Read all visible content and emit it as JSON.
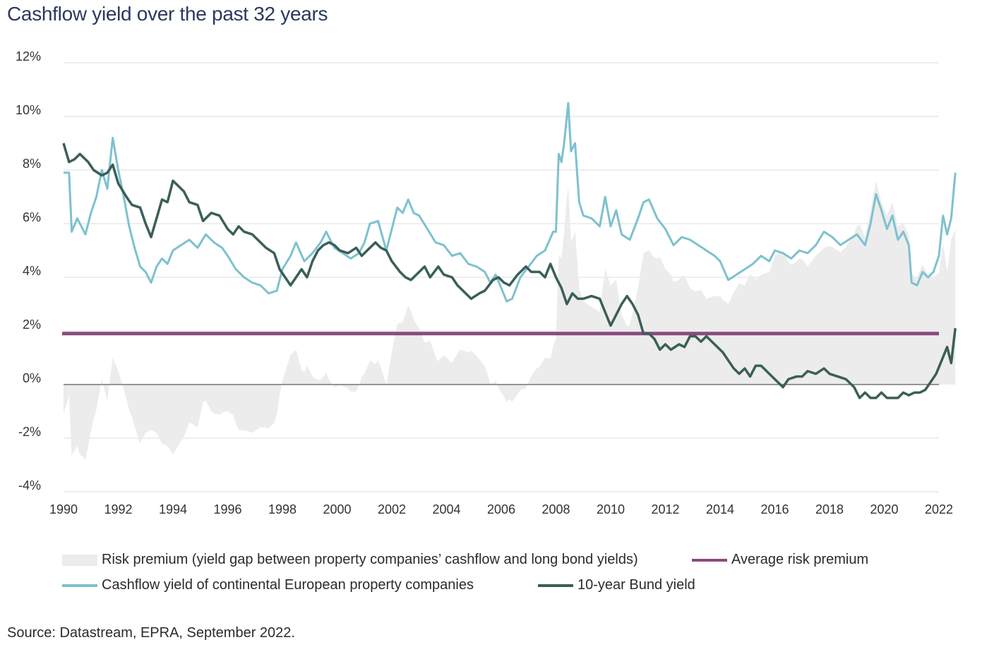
{
  "title": "Cashflow yield over the past 32 years",
  "source": "Source: Datastream, EPRA, September 2022.",
  "colors": {
    "risk_premium": "#ececec",
    "average": "#8a4a7e",
    "cashflow": "#7ec1cf",
    "bund": "#3a5f58",
    "grid": "#dddddd",
    "zero": "#333333"
  },
  "chart_data": {
    "type": "line",
    "xlim": [
      1990,
      2022
    ],
    "ylim": [
      -4,
      12
    ],
    "x_ticks": [
      "1990",
      "1992",
      "1994",
      "1996",
      "1998",
      "2000",
      "2002",
      "2004",
      "2006",
      "2008",
      "2010",
      "2012",
      "2014",
      "2016",
      "2018",
      "2020",
      "2022"
    ],
    "y_ticks": [
      "12%",
      "10%",
      "8%",
      "6%",
      "4%",
      "2%",
      "0%",
      "-2%",
      "-4%"
    ],
    "grid": true,
    "legend": "bottom",
    "average_risk_premium": 1.9,
    "series": [
      {
        "name": "Cashflow yield of continental European property companies",
        "points": [
          [
            1990.0,
            7.9
          ],
          [
            1990.2,
            7.9
          ],
          [
            1990.3,
            5.7
          ],
          [
            1990.5,
            6.2
          ],
          [
            1990.8,
            5.6
          ],
          [
            1991.0,
            6.4
          ],
          [
            1991.2,
            7.0
          ],
          [
            1991.4,
            8.0
          ],
          [
            1991.6,
            7.3
          ],
          [
            1991.8,
            9.2
          ],
          [
            1992.0,
            8.0
          ],
          [
            1992.2,
            7.0
          ],
          [
            1992.4,
            5.9
          ],
          [
            1992.6,
            5.1
          ],
          [
            1992.8,
            4.4
          ],
          [
            1993.0,
            4.2
          ],
          [
            1993.2,
            3.8
          ],
          [
            1993.4,
            4.4
          ],
          [
            1993.6,
            4.7
          ],
          [
            1993.8,
            4.5
          ],
          [
            1994.0,
            5.0
          ],
          [
            1994.3,
            5.2
          ],
          [
            1994.6,
            5.4
          ],
          [
            1994.9,
            5.1
          ],
          [
            1995.2,
            5.6
          ],
          [
            1995.5,
            5.3
          ],
          [
            1995.8,
            5.1
          ],
          [
            1996.0,
            4.8
          ],
          [
            1996.3,
            4.3
          ],
          [
            1996.6,
            4.0
          ],
          [
            1996.9,
            3.8
          ],
          [
            1997.2,
            3.7
          ],
          [
            1997.5,
            3.4
          ],
          [
            1997.8,
            3.5
          ],
          [
            1998.0,
            4.3
          ],
          [
            1998.3,
            4.8
          ],
          [
            1998.5,
            5.3
          ],
          [
            1998.8,
            4.6
          ],
          [
            1999.1,
            4.9
          ],
          [
            1999.4,
            5.3
          ],
          [
            1999.6,
            5.7
          ],
          [
            1999.9,
            5.1
          ],
          [
            2000.2,
            4.9
          ],
          [
            2000.5,
            4.7
          ],
          [
            2000.8,
            4.9
          ],
          [
            2001.0,
            5.3
          ],
          [
            2001.2,
            6.0
          ],
          [
            2001.5,
            6.1
          ],
          [
            2001.8,
            5.0
          ],
          [
            2002.0,
            5.8
          ],
          [
            2002.2,
            6.6
          ],
          [
            2002.4,
            6.4
          ],
          [
            2002.6,
            6.9
          ],
          [
            2002.8,
            6.4
          ],
          [
            2003.0,
            6.3
          ],
          [
            2003.3,
            5.8
          ],
          [
            2003.6,
            5.3
          ],
          [
            2003.9,
            5.2
          ],
          [
            2004.2,
            4.8
          ],
          [
            2004.5,
            4.9
          ],
          [
            2004.8,
            4.5
          ],
          [
            2005.1,
            4.4
          ],
          [
            2005.4,
            4.2
          ],
          [
            2005.6,
            3.8
          ],
          [
            2005.8,
            4.1
          ],
          [
            2006.0,
            3.6
          ],
          [
            2006.2,
            3.1
          ],
          [
            2006.4,
            3.2
          ],
          [
            2006.7,
            4.0
          ],
          [
            2007.0,
            4.4
          ],
          [
            2007.3,
            4.8
          ],
          [
            2007.6,
            5.0
          ],
          [
            2007.9,
            5.7
          ],
          [
            2008.0,
            5.7
          ],
          [
            2008.1,
            8.6
          ],
          [
            2008.2,
            8.3
          ],
          [
            2008.3,
            9.0
          ],
          [
            2008.45,
            10.5
          ],
          [
            2008.55,
            8.7
          ],
          [
            2008.7,
            9.0
          ],
          [
            2008.85,
            6.8
          ],
          [
            2009.0,
            6.3
          ],
          [
            2009.3,
            6.2
          ],
          [
            2009.6,
            5.9
          ],
          [
            2009.8,
            7.0
          ],
          [
            2010.0,
            5.9
          ],
          [
            2010.2,
            6.5
          ],
          [
            2010.4,
            5.6
          ],
          [
            2010.7,
            5.4
          ],
          [
            2011.0,
            6.2
          ],
          [
            2011.2,
            6.8
          ],
          [
            2011.4,
            6.9
          ],
          [
            2011.7,
            6.2
          ],
          [
            2012.0,
            5.8
          ],
          [
            2012.3,
            5.2
          ],
          [
            2012.6,
            5.5
          ],
          [
            2012.9,
            5.4
          ],
          [
            2013.2,
            5.2
          ],
          [
            2013.5,
            5.0
          ],
          [
            2013.8,
            4.8
          ],
          [
            2014.0,
            4.6
          ],
          [
            2014.3,
            3.9
          ],
          [
            2014.6,
            4.1
          ],
          [
            2014.9,
            4.3
          ],
          [
            2015.2,
            4.5
          ],
          [
            2015.5,
            4.8
          ],
          [
            2015.8,
            4.6
          ],
          [
            2016.0,
            5.0
          ],
          [
            2016.3,
            4.9
          ],
          [
            2016.6,
            4.7
          ],
          [
            2016.9,
            5.0
          ],
          [
            2017.2,
            4.9
          ],
          [
            2017.5,
            5.2
          ],
          [
            2017.8,
            5.7
          ],
          [
            2018.1,
            5.5
          ],
          [
            2018.4,
            5.2
          ],
          [
            2018.7,
            5.4
          ],
          [
            2019.0,
            5.6
          ],
          [
            2019.3,
            5.2
          ],
          [
            2019.5,
            6.0
          ],
          [
            2019.7,
            7.1
          ],
          [
            2019.9,
            6.5
          ],
          [
            2020.1,
            5.8
          ],
          [
            2020.3,
            6.3
          ],
          [
            2020.5,
            5.4
          ],
          [
            2020.7,
            5.7
          ],
          [
            2020.9,
            5.2
          ],
          [
            2021.0,
            3.8
          ],
          [
            2021.2,
            3.7
          ],
          [
            2021.4,
            4.2
          ],
          [
            2021.6,
            4.0
          ],
          [
            2021.8,
            4.2
          ],
          [
            2022.0,
            4.8
          ],
          [
            2022.15,
            6.3
          ],
          [
            2022.3,
            5.6
          ],
          [
            2022.45,
            6.2
          ],
          [
            2022.6,
            7.9
          ]
        ]
      },
      {
        "name": "10-year Bund yield",
        "points": [
          [
            1990.0,
            9.0
          ],
          [
            1990.2,
            8.3
          ],
          [
            1990.4,
            8.4
          ],
          [
            1990.6,
            8.6
          ],
          [
            1990.9,
            8.3
          ],
          [
            1991.1,
            8.0
          ],
          [
            1991.4,
            7.8
          ],
          [
            1991.6,
            7.9
          ],
          [
            1991.8,
            8.2
          ],
          [
            1992.0,
            7.5
          ],
          [
            1992.3,
            7.0
          ],
          [
            1992.5,
            6.7
          ],
          [
            1992.8,
            6.6
          ],
          [
            1993.0,
            6.0
          ],
          [
            1993.2,
            5.5
          ],
          [
            1993.4,
            6.2
          ],
          [
            1993.6,
            6.9
          ],
          [
            1993.8,
            6.8
          ],
          [
            1994.0,
            7.6
          ],
          [
            1994.2,
            7.4
          ],
          [
            1994.4,
            7.2
          ],
          [
            1994.6,
            6.8
          ],
          [
            1994.9,
            6.7
          ],
          [
            1995.1,
            6.1
          ],
          [
            1995.4,
            6.4
          ],
          [
            1995.7,
            6.3
          ],
          [
            1996.0,
            5.8
          ],
          [
            1996.2,
            5.6
          ],
          [
            1996.4,
            5.9
          ],
          [
            1996.6,
            5.7
          ],
          [
            1996.9,
            5.6
          ],
          [
            1997.1,
            5.4
          ],
          [
            1997.4,
            5.1
          ],
          [
            1997.7,
            4.9
          ],
          [
            1997.9,
            4.3
          ],
          [
            1998.1,
            4.0
          ],
          [
            1998.3,
            3.7
          ],
          [
            1998.5,
            4.0
          ],
          [
            1998.7,
            4.3
          ],
          [
            1998.9,
            4.0
          ],
          [
            1999.1,
            4.6
          ],
          [
            1999.3,
            5.0
          ],
          [
            1999.5,
            5.2
          ],
          [
            1999.7,
            5.3
          ],
          [
            1999.9,
            5.2
          ],
          [
            2000.1,
            5.0
          ],
          [
            2000.4,
            4.9
          ],
          [
            2000.7,
            5.1
          ],
          [
            2000.9,
            4.8
          ],
          [
            2001.1,
            5.0
          ],
          [
            2001.4,
            5.3
          ],
          [
            2001.6,
            5.1
          ],
          [
            2001.8,
            5.0
          ],
          [
            2002.0,
            4.6
          ],
          [
            2002.3,
            4.2
          ],
          [
            2002.5,
            4.0
          ],
          [
            2002.7,
            3.9
          ],
          [
            2003.0,
            4.2
          ],
          [
            2003.2,
            4.4
          ],
          [
            2003.4,
            4.0
          ],
          [
            2003.7,
            4.4
          ],
          [
            2003.9,
            4.1
          ],
          [
            2004.2,
            4.0
          ],
          [
            2004.4,
            3.7
          ],
          [
            2004.7,
            3.4
          ],
          [
            2004.9,
            3.2
          ],
          [
            2005.2,
            3.4
          ],
          [
            2005.4,
            3.5
          ],
          [
            2005.7,
            3.9
          ],
          [
            2005.9,
            4.0
          ],
          [
            2006.1,
            3.8
          ],
          [
            2006.3,
            3.7
          ],
          [
            2006.6,
            4.1
          ],
          [
            2006.9,
            4.4
          ],
          [
            2007.1,
            4.2
          ],
          [
            2007.4,
            4.2
          ],
          [
            2007.6,
            4.0
          ],
          [
            2007.8,
            4.5
          ],
          [
            2008.0,
            4.0
          ],
          [
            2008.2,
            3.6
          ],
          [
            2008.4,
            3.0
          ],
          [
            2008.6,
            3.4
          ],
          [
            2008.8,
            3.2
          ],
          [
            2009.0,
            3.2
          ],
          [
            2009.3,
            3.3
          ],
          [
            2009.6,
            3.2
          ],
          [
            2009.8,
            2.7
          ],
          [
            2010.0,
            2.2
          ],
          [
            2010.2,
            2.6
          ],
          [
            2010.4,
            3.0
          ],
          [
            2010.6,
            3.3
          ],
          [
            2010.8,
            3.0
          ],
          [
            2011.0,
            2.6
          ],
          [
            2011.2,
            1.9
          ],
          [
            2011.4,
            1.9
          ],
          [
            2011.6,
            1.7
          ],
          [
            2011.8,
            1.3
          ],
          [
            2012.0,
            1.5
          ],
          [
            2012.2,
            1.3
          ],
          [
            2012.5,
            1.5
          ],
          [
            2012.7,
            1.4
          ],
          [
            2012.9,
            1.8
          ],
          [
            2013.1,
            1.8
          ],
          [
            2013.3,
            1.6
          ],
          [
            2013.5,
            1.8
          ],
          [
            2013.7,
            1.6
          ],
          [
            2013.9,
            1.4
          ],
          [
            2014.1,
            1.2
          ],
          [
            2014.3,
            0.9
          ],
          [
            2014.5,
            0.6
          ],
          [
            2014.7,
            0.4
          ],
          [
            2014.9,
            0.6
          ],
          [
            2015.1,
            0.3
          ],
          [
            2015.3,
            0.7
          ],
          [
            2015.5,
            0.7
          ],
          [
            2015.7,
            0.5
          ],
          [
            2015.9,
            0.3
          ],
          [
            2016.1,
            0.1
          ],
          [
            2016.3,
            -0.1
          ],
          [
            2016.5,
            0.2
          ],
          [
            2016.8,
            0.3
          ],
          [
            2017.0,
            0.3
          ],
          [
            2017.2,
            0.5
          ],
          [
            2017.5,
            0.4
          ],
          [
            2017.8,
            0.6
          ],
          [
            2018.0,
            0.4
          ],
          [
            2018.3,
            0.3
          ],
          [
            2018.6,
            0.2
          ],
          [
            2018.9,
            -0.1
          ],
          [
            2019.1,
            -0.5
          ],
          [
            2019.3,
            -0.3
          ],
          [
            2019.5,
            -0.5
          ],
          [
            2019.7,
            -0.5
          ],
          [
            2019.9,
            -0.3
          ],
          [
            2020.1,
            -0.5
          ],
          [
            2020.3,
            -0.5
          ],
          [
            2020.5,
            -0.5
          ],
          [
            2020.7,
            -0.3
          ],
          [
            2020.9,
            -0.4
          ],
          [
            2021.1,
            -0.3
          ],
          [
            2021.3,
            -0.3
          ],
          [
            2021.5,
            -0.2
          ],
          [
            2021.7,
            0.1
          ],
          [
            2021.9,
            0.4
          ],
          [
            2022.1,
            0.9
          ],
          [
            2022.3,
            1.4
          ],
          [
            2022.45,
            0.8
          ],
          [
            2022.6,
            2.1
          ]
        ]
      }
    ]
  },
  "legend": {
    "risk_premium": "Risk premium (yield gap between property companies’ cashflow and long bond yields)",
    "average": "Average risk premium",
    "cashflow": "Cashflow yield of continental European property companies",
    "bund": "10-year Bund yield"
  }
}
